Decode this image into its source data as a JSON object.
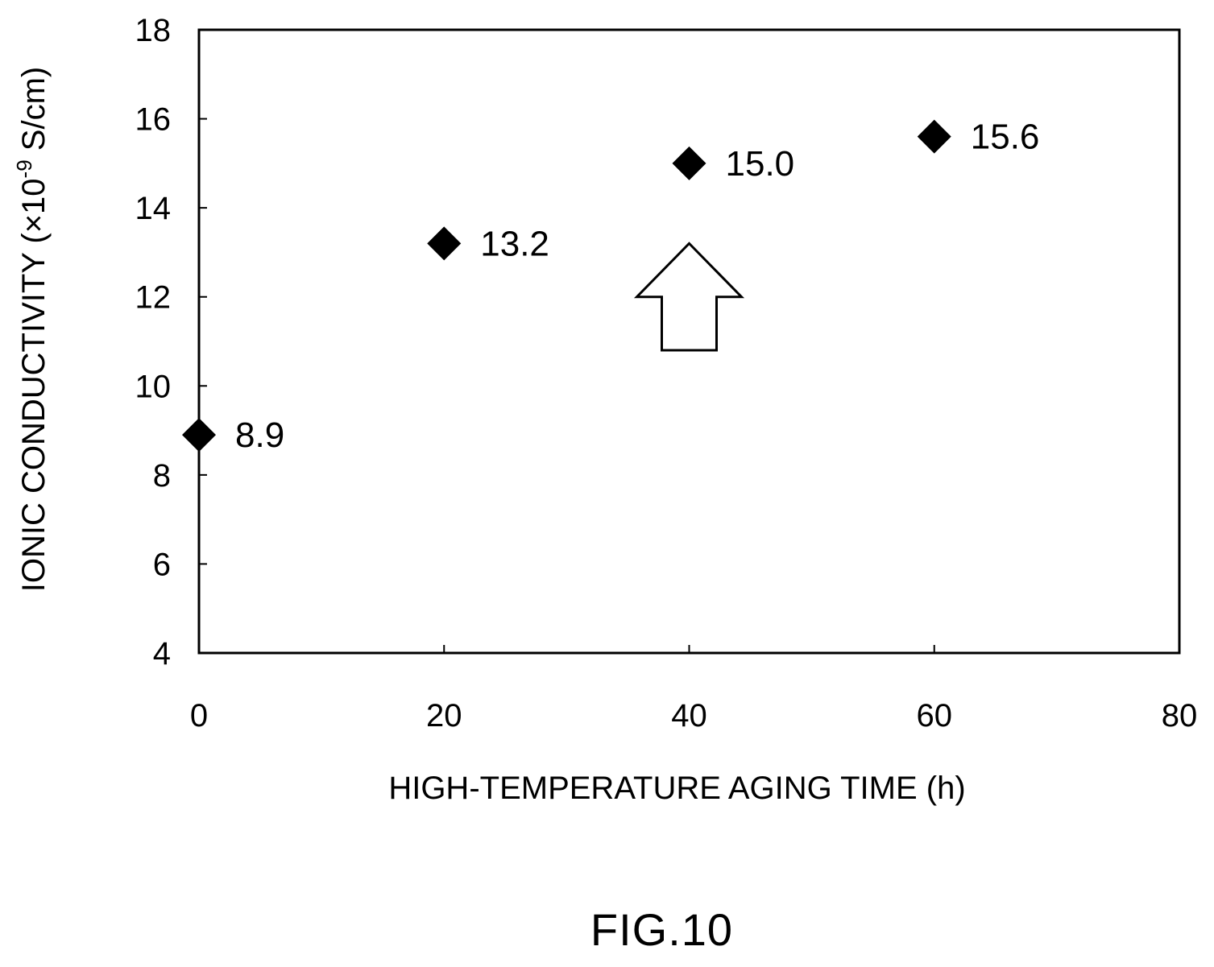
{
  "figure_caption": "FIG.10",
  "chart_data": {
    "type": "scatter",
    "title": "",
    "xlabel": "HIGH-TEMPERATURE AGING TIME (h)",
    "ylabel_main": "IONIC CONDUCTIVITY (×10",
    "ylabel_exp": "-9",
    "ylabel_unit": " S/cm)",
    "xlim": [
      0,
      80
    ],
    "ylim": [
      4,
      18
    ],
    "xticks": [
      0,
      20,
      40,
      60,
      80
    ],
    "yticks": [
      4,
      6,
      8,
      10,
      12,
      14,
      16,
      18
    ],
    "grid": false,
    "marker": "diamond",
    "series": [
      {
        "points": [
          {
            "x": 0,
            "y": 8.9,
            "label": "8.9"
          },
          {
            "x": 20,
            "y": 13.2,
            "label": "13.2"
          },
          {
            "x": 40,
            "y": 15.0,
            "label": "15.0"
          },
          {
            "x": 60,
            "y": 15.6,
            "label": "15.6"
          }
        ]
      }
    ],
    "annotations": [
      {
        "type": "hollow-up-arrow",
        "x": 40,
        "y_tip": 13.2,
        "y_base": 10.8
      }
    ]
  }
}
